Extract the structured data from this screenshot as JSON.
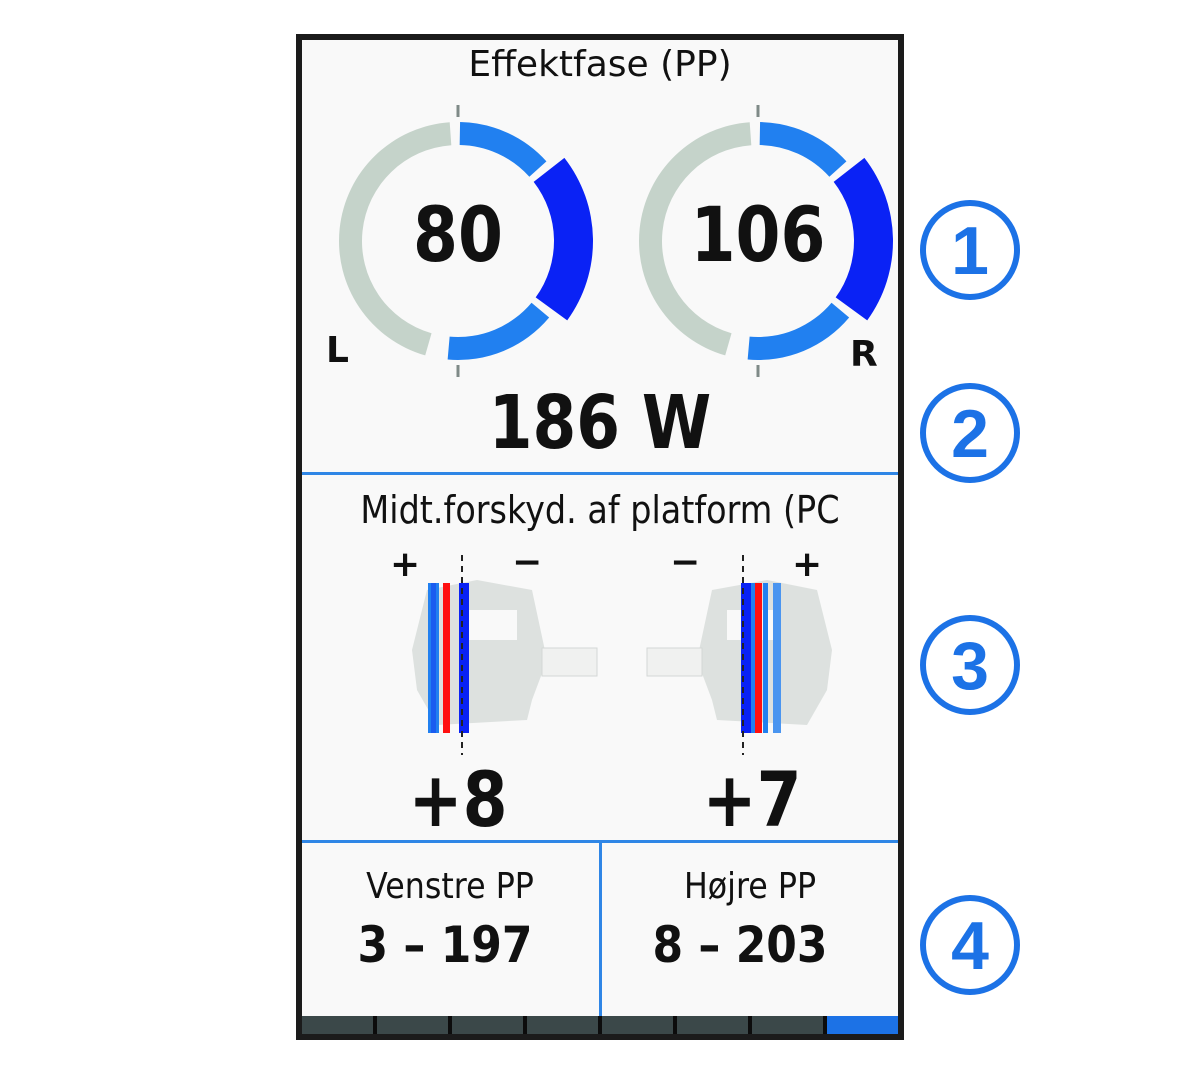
{
  "power_phase": {
    "title": "Effektfase (PP)",
    "left": {
      "value": "80",
      "side_label": "L"
    },
    "right": {
      "value": "106",
      "side_label": "R"
    },
    "total_power": "186 W"
  },
  "platform_offset": {
    "title": "Midt.forskyd. af platform (PC",
    "left": {
      "plus": "+",
      "minus": "−",
      "value": "+8"
    },
    "right": {
      "plus": "+",
      "minus": "−",
      "value": "+7"
    }
  },
  "phase_peaks": {
    "left": {
      "label": "Venstre PP",
      "value": "3 – 197"
    },
    "right": {
      "label": "Højre PP",
      "value": "8 – 203"
    }
  },
  "page_indicator": {
    "total_pages": 8,
    "active_page": 8
  },
  "callouts": [
    "1",
    "2",
    "3",
    "4"
  ],
  "colors": {
    "accent": "#1c72e6",
    "dark_blue": "#0a22f5",
    "light_blue": "#2180f0",
    "gray_arc": "#c5d3ca",
    "red": "#ff1010"
  }
}
